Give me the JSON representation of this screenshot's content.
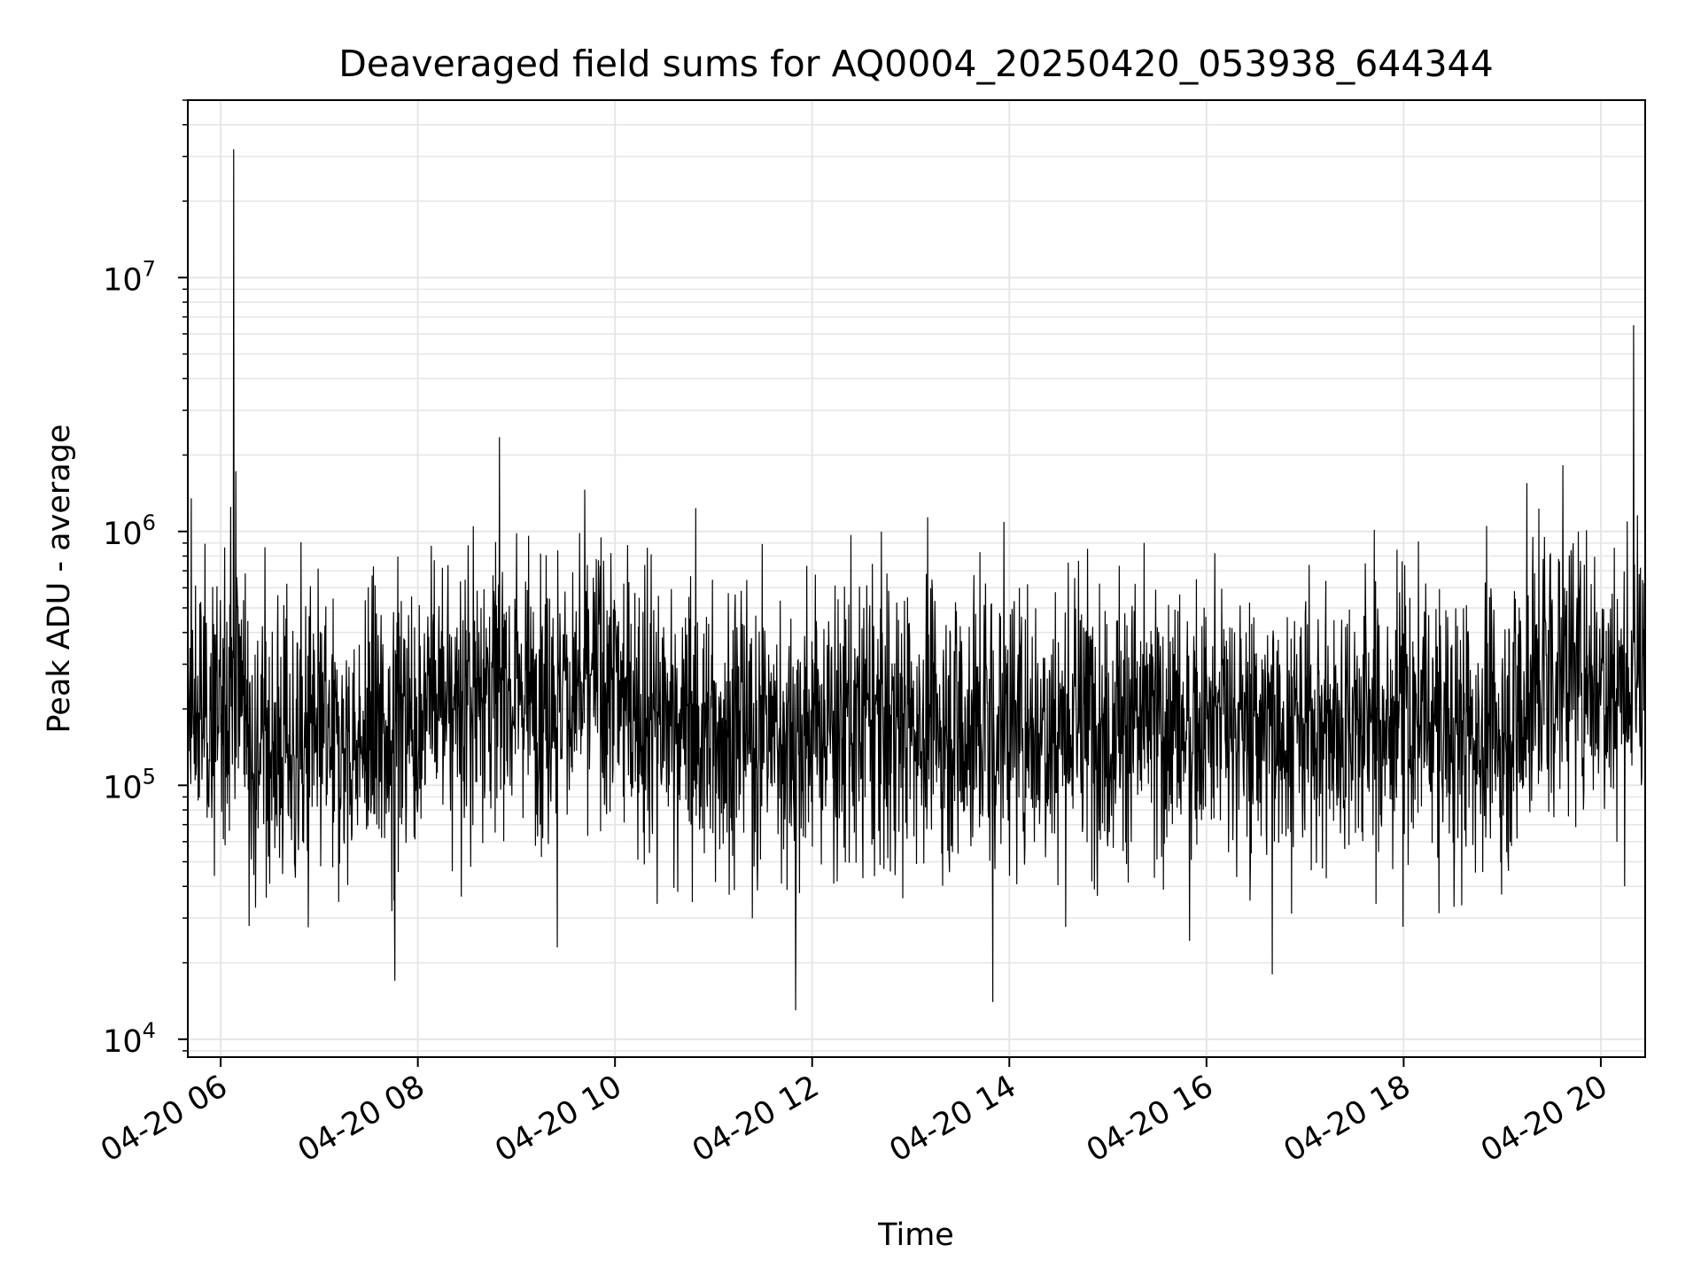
{
  "chart_data": {
    "type": "line",
    "title": "Deaveraged field sums for AQ0004_20250420_053938_644344",
    "xlabel": "Time",
    "ylabel": "Peak ADU - average",
    "y_scale": "log",
    "ylim": [
      8500,
      50000000
    ],
    "xlim": [
      "2025-04-20 05:40",
      "2025-04-20 20:27"
    ],
    "grid": true,
    "line_color": "#000000",
    "grid_color": "#e6e6e6",
    "x_ticks": [
      {
        "at": "2025-04-20 06:00",
        "label": "04-20 06"
      },
      {
        "at": "2025-04-20 08:00",
        "label": "04-20 08"
      },
      {
        "at": "2025-04-20 10:00",
        "label": "04-20 10"
      },
      {
        "at": "2025-04-20 12:00",
        "label": "04-20 12"
      },
      {
        "at": "2025-04-20 14:00",
        "label": "04-20 14"
      },
      {
        "at": "2025-04-20 16:00",
        "label": "04-20 16"
      },
      {
        "at": "2025-04-20 18:00",
        "label": "04-20 18"
      },
      {
        "at": "2025-04-20 20:00",
        "label": "04-20 20"
      }
    ],
    "y_ticks": [
      {
        "value": 10000,
        "base": "10",
        "exp": "4"
      },
      {
        "value": 100000,
        "base": "10",
        "exp": "5"
      },
      {
        "value": 1000000,
        "base": "10",
        "exp": "6"
      },
      {
        "value": 10000000,
        "base": "10",
        "exp": "7"
      }
    ],
    "series": [
      {
        "x": [
          "2025-04-20 05:40",
          "2025-04-20 05:50",
          "2025-04-20 06:00",
          "2025-04-20 06:05",
          "2025-04-20 06:10",
          "2025-04-20 06:20",
          "2025-04-20 06:40",
          "2025-04-20 07:00",
          "2025-04-20 07:20",
          "2025-04-20 07:40",
          "2025-04-20 08:00",
          "2025-04-20 08:30",
          "2025-04-20 09:00",
          "2025-04-20 09:30",
          "2025-04-20 10:00",
          "2025-04-20 10:30",
          "2025-04-20 11:00",
          "2025-04-20 11:30",
          "2025-04-20 12:00",
          "2025-04-20 12:30",
          "2025-04-20 13:00",
          "2025-04-20 13:30",
          "2025-04-20 14:00",
          "2025-04-20 14:30",
          "2025-04-20 15:00",
          "2025-04-20 15:30",
          "2025-04-20 16:00",
          "2025-04-20 16:30",
          "2025-04-20 17:00",
          "2025-04-20 17:30",
          "2025-04-20 18:00",
          "2025-04-20 18:30",
          "2025-04-20 19:00",
          "2025-04-20 19:20",
          "2025-04-20 19:40",
          "2025-04-20 20:00",
          "2025-04-20 20:15",
          "2025-04-20 20:27"
        ],
        "y": [
          160000,
          200000,
          180000,
          250000,
          300000,
          150000,
          140000,
          150000,
          140000,
          160000,
          200000,
          230000,
          250000,
          240000,
          250000,
          180000,
          170000,
          160000,
          165000,
          175000,
          180000,
          170000,
          175000,
          180000,
          180000,
          175000,
          170000,
          175000,
          180000,
          175000,
          180000,
          170000,
          160000,
          250000,
          300000,
          280000,
          260000,
          280000
        ]
      }
    ],
    "spikes": [
      {
        "x": "2025-04-20 06:08",
        "y": 32000000
      },
      {
        "x": "2025-04-20 20:20",
        "y": 6500000
      },
      {
        "x": "2025-04-20 19:15",
        "y": 1550000
      },
      {
        "x": "2025-04-20 05:42",
        "y": 1350000
      },
      {
        "x": "2025-04-20 06:06",
        "y": 1250000
      },
      {
        "x": "2025-04-20 11:50",
        "y": 13000
      },
      {
        "x": "2025-04-20 13:50",
        "y": 14000
      },
      {
        "x": "2025-04-20 16:40",
        "y": 18000
      },
      {
        "x": "2025-04-20 09:25",
        "y": 23000
      },
      {
        "x": "2025-04-20 08:10",
        "y": 770000
      },
      {
        "x": "2025-04-20 09:50",
        "y": 770000
      }
    ]
  }
}
